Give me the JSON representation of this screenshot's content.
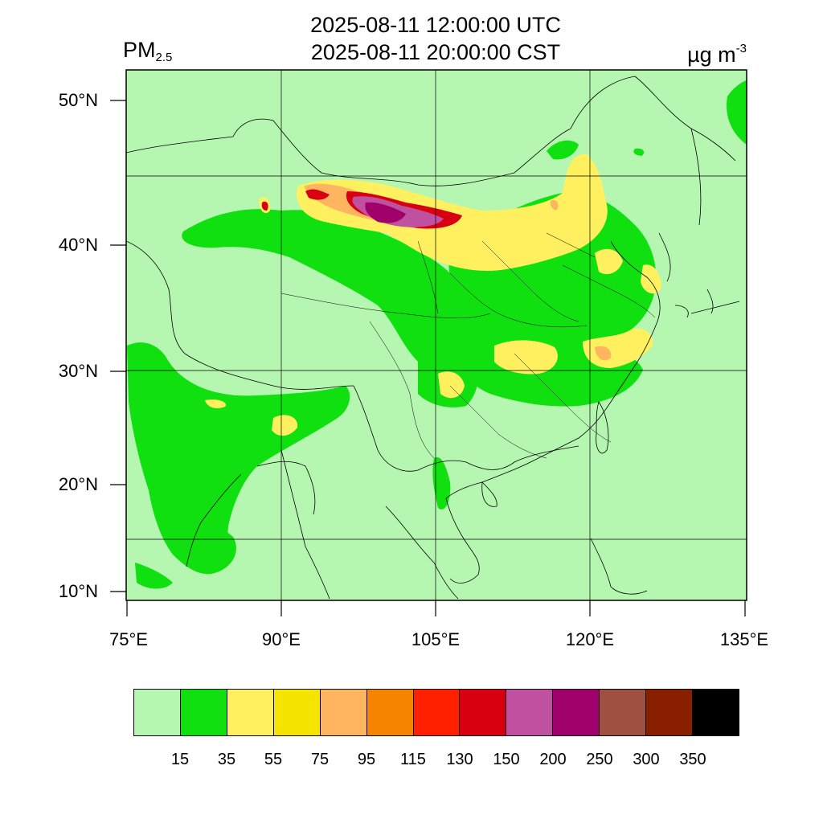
{
  "title": {
    "utc": "2025-08-11 12:00:00 UTC",
    "cst": "2025-08-11 20:00:00 CST"
  },
  "variable": {
    "main": "PM",
    "sub": "2.5"
  },
  "units": {
    "main": "µg m",
    "sup": "-3"
  },
  "map": {
    "lon_range": [
      75,
      135
    ],
    "lat_range": [
      9,
      52
    ],
    "lat_labels": [
      "50°N",
      "40°N",
      "30°N",
      "20°N",
      "10°N"
    ],
    "lon_labels": [
      "75°E",
      "90°E",
      "105°E",
      "120°E",
      "135°E"
    ],
    "background_color": "#b5f7b0"
  },
  "colorbar": {
    "colors": [
      "#b5f7b0",
      "#10e010",
      "#fff060",
      "#f5e400",
      "#ffb560",
      "#f58500",
      "#ff2000",
      "#d80010",
      "#c050a0",
      "#a0006a",
      "#a05040",
      "#882000",
      "#000000"
    ],
    "labels": [
      "15",
      "35",
      "55",
      "75",
      "95",
      "115",
      "130",
      "150",
      "200",
      "250",
      "300",
      "350"
    ]
  }
}
